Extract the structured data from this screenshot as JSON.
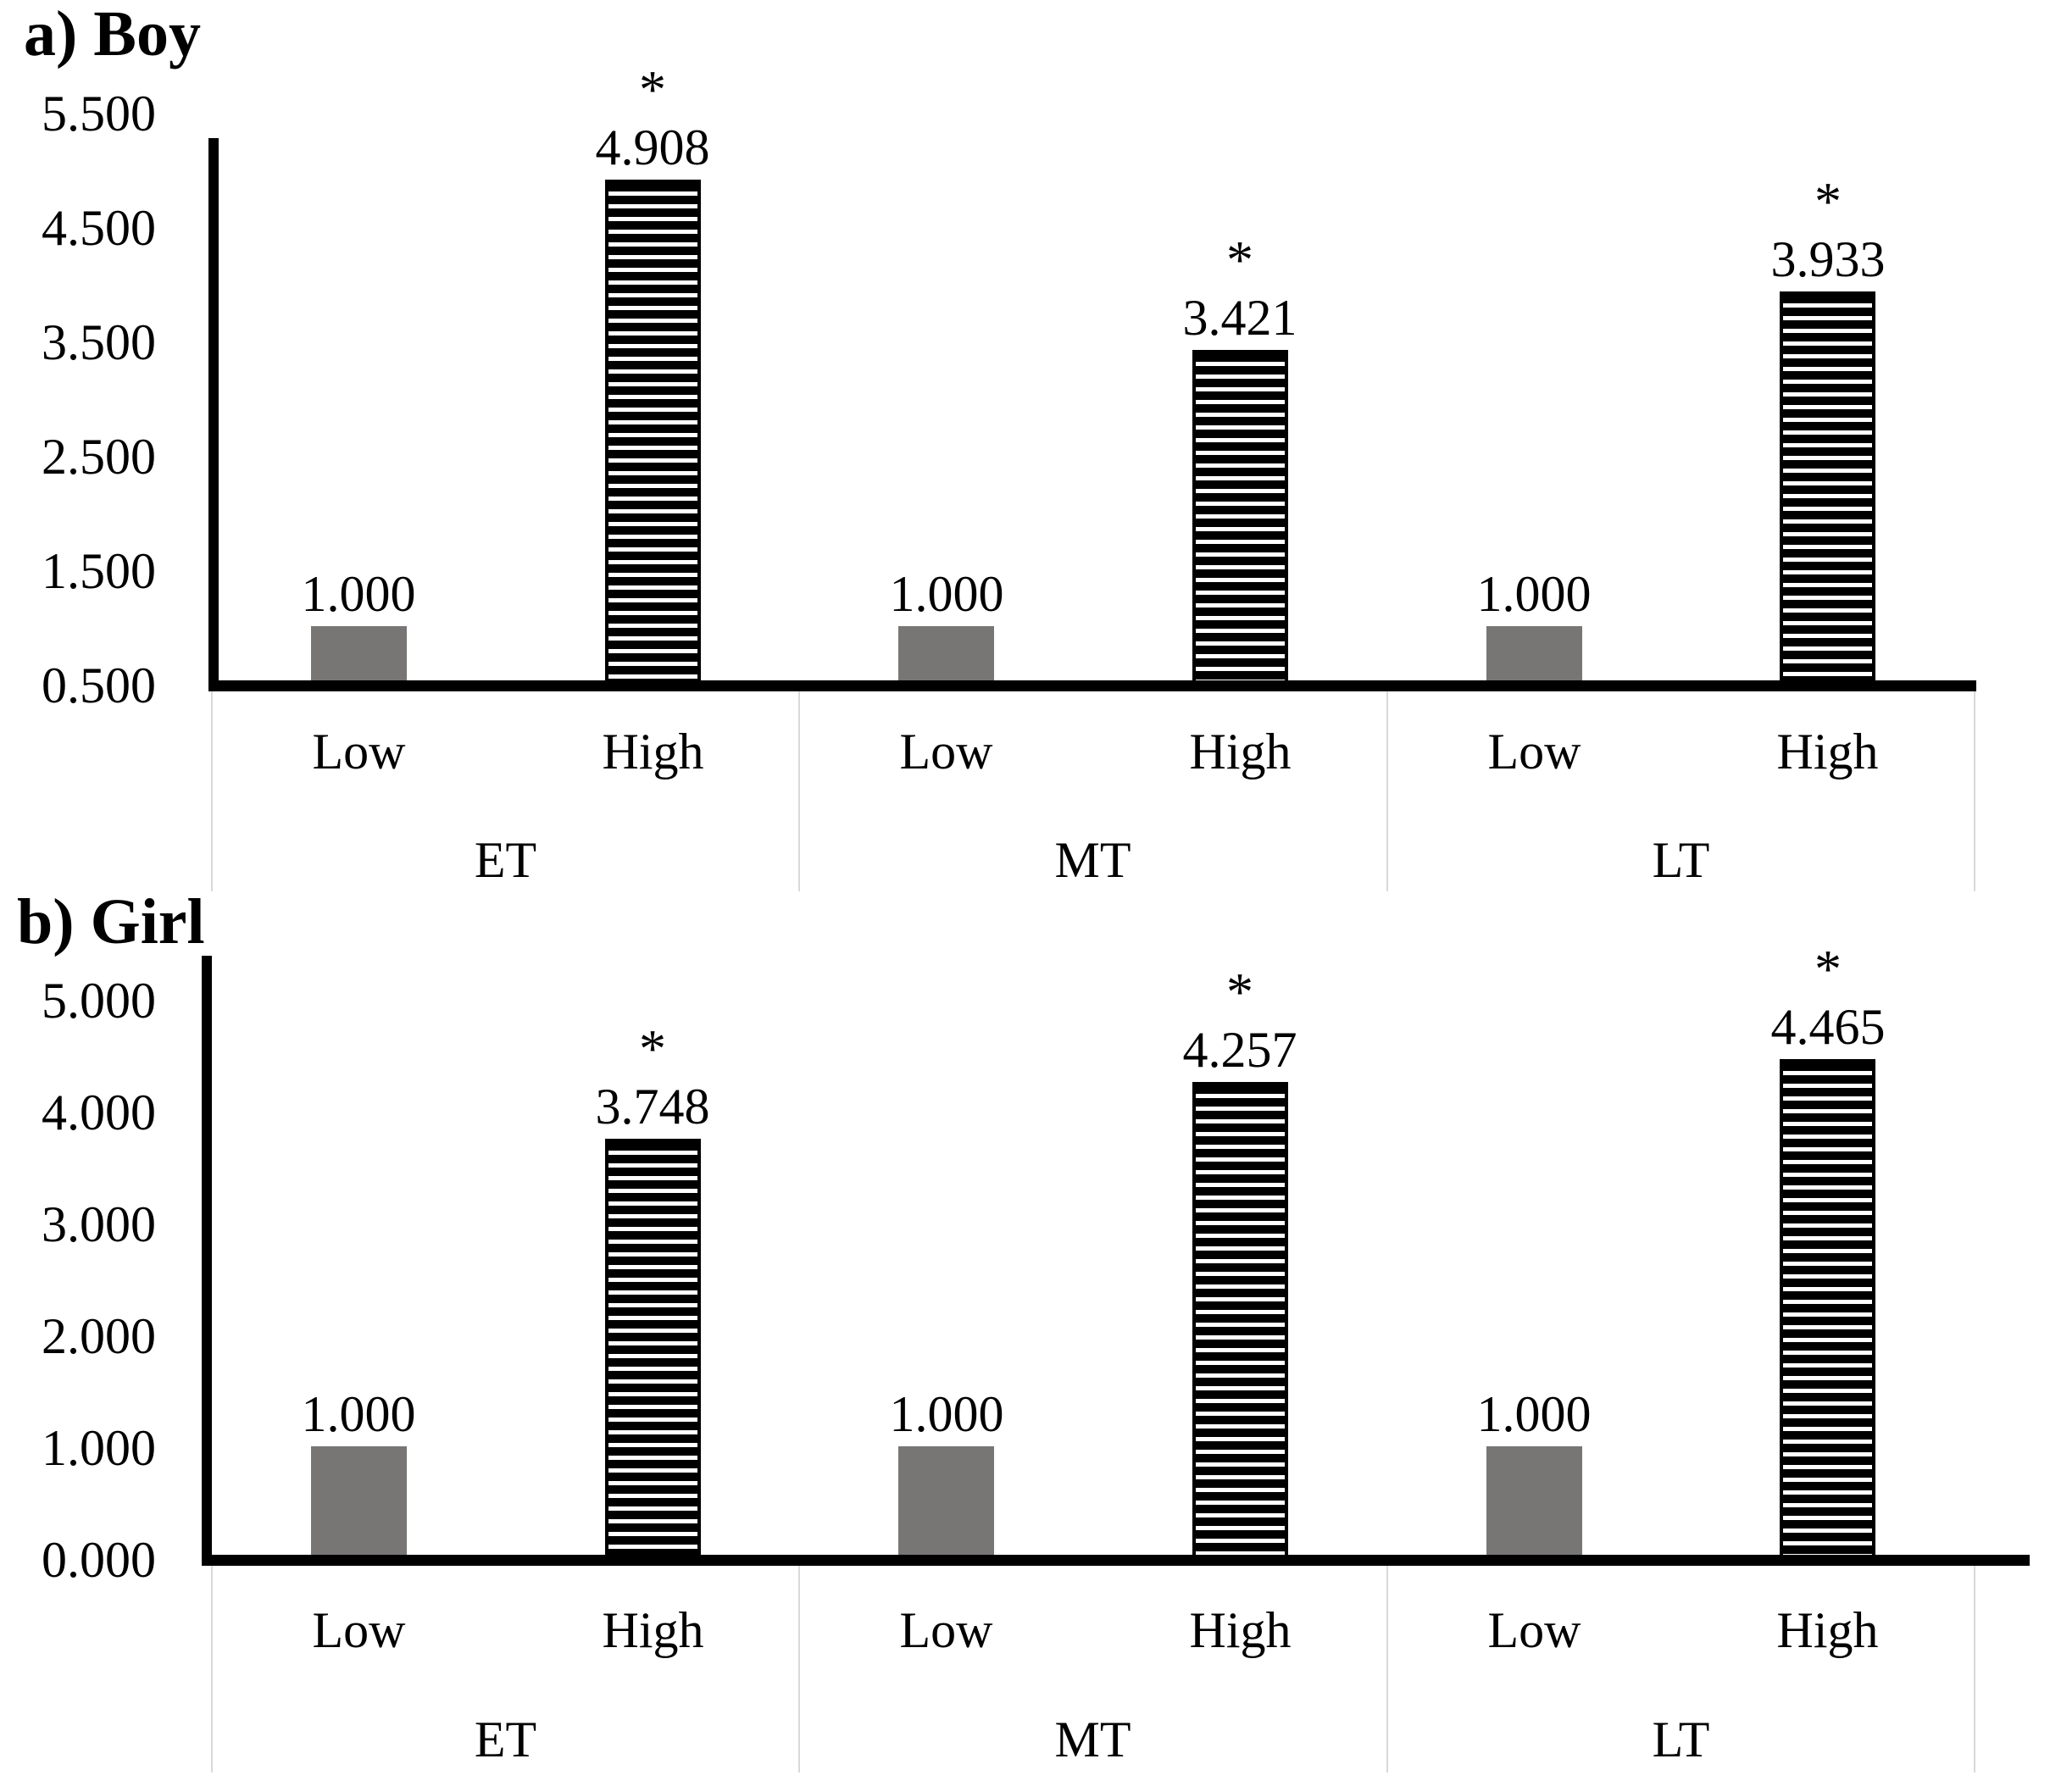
{
  "figure": {
    "background": "#ffffff",
    "panel_a_title": "a) Boy",
    "panel_b_title": "b) Girl"
  },
  "chart_data": [
    {
      "type": "bar",
      "panel": "a",
      "title": "a) Boy",
      "ylim": [
        0.5,
        5.5
      ],
      "ytick_labels": [
        "0.500",
        "1.500",
        "2.500",
        "3.500",
        "4.500",
        "5.500"
      ],
      "grid": false,
      "legend": "none",
      "group_labels": [
        "ET",
        "MT",
        "LT"
      ],
      "x_tick_labels": [
        "Low",
        "High",
        "Low",
        "High",
        "Low",
        "High"
      ],
      "categories": [
        "ET-Low",
        "ET-High",
        "MT-Low",
        "MT-High",
        "LT-Low",
        "LT-High"
      ],
      "values": [
        1.0,
        4.908,
        1.0,
        3.421,
        1.0,
        3.933
      ],
      "value_labels": [
        "1.000",
        "4.908",
        "1.000",
        "3.421",
        "1.000",
        "3.933"
      ],
      "significant": [
        false,
        true,
        false,
        true,
        false,
        true
      ],
      "sig_marker": "*",
      "bar_styles": [
        "solid",
        "striped",
        "solid",
        "striped",
        "solid",
        "striped"
      ],
      "colors": {
        "solid_bar": "#787575",
        "striped_bar_fg": "#000000",
        "striped_bar_bg": "#ffffff",
        "axis": "#000000",
        "divider": "#d9d9d9"
      }
    },
    {
      "type": "bar",
      "panel": "b",
      "title": "b) Girl",
      "ylim": [
        0.0,
        5.0
      ],
      "ytick_labels": [
        "0.000",
        "1.000",
        "2.000",
        "3.000",
        "4.000",
        "5.000"
      ],
      "grid": false,
      "legend": "none",
      "group_labels": [
        "ET",
        "MT",
        "LT"
      ],
      "x_tick_labels": [
        "Low",
        "High",
        "Low",
        "High",
        "Low",
        "High"
      ],
      "categories": [
        "ET-Low",
        "ET-High",
        "MT-Low",
        "MT-High",
        "LT-Low",
        "LT-High"
      ],
      "values": [
        1.0,
        3.748,
        1.0,
        4.257,
        1.0,
        4.465
      ],
      "value_labels": [
        "1.000",
        "3.748",
        "1.000",
        "4.257",
        "1.000",
        "4.465"
      ],
      "significant": [
        false,
        true,
        false,
        true,
        false,
        true
      ],
      "sig_marker": "*",
      "bar_styles": [
        "solid",
        "striped",
        "solid",
        "striped",
        "solid",
        "striped"
      ],
      "colors": {
        "solid_bar": "#787575",
        "striped_bar_fg": "#000000",
        "striped_bar_bg": "#ffffff",
        "axis": "#000000",
        "divider": "#d9d9d9"
      }
    }
  ]
}
